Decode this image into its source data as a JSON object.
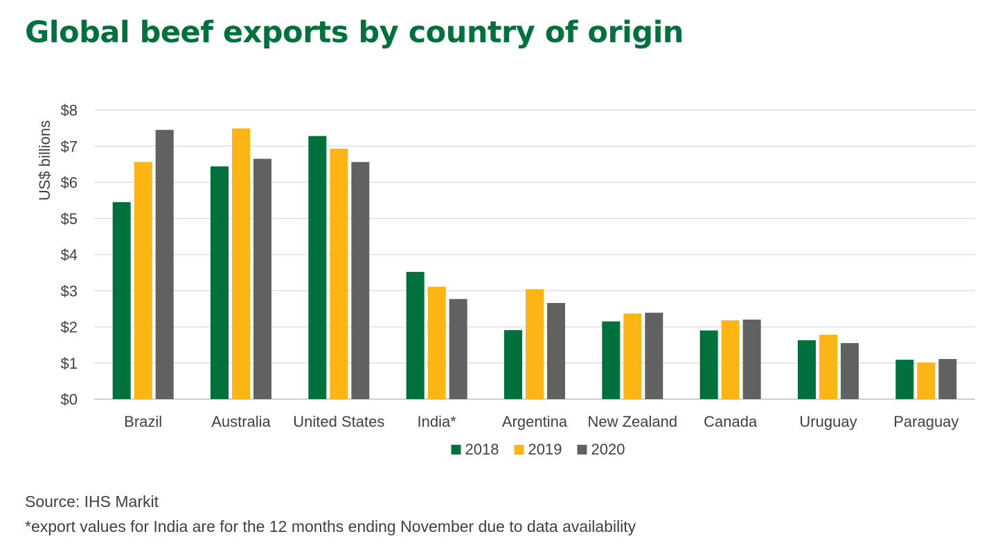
{
  "chart_data": {
    "type": "bar",
    "title": "Global beef exports by country of origin",
    "ylabel": "US$ billions",
    "xlabel": "",
    "ylim": [
      0,
      8
    ],
    "yticks": [
      {
        "value": 0,
        "label": "$0"
      },
      {
        "value": 1,
        "label": "$1"
      },
      {
        "value": 2,
        "label": "$2"
      },
      {
        "value": 3,
        "label": "$3"
      },
      {
        "value": 4,
        "label": "$4"
      },
      {
        "value": 5,
        "label": "$5"
      },
      {
        "value": 6,
        "label": "$6"
      },
      {
        "value": 7,
        "label": "$7"
      },
      {
        "value": 8,
        "label": "$8"
      }
    ],
    "grid": true,
    "legend_position": "bottom",
    "categories": [
      "Brazil",
      "Australia",
      "United States",
      "India*",
      "Argentina",
      "New Zealand",
      "Canada",
      "Uruguay",
      "Paraguay"
    ],
    "series": [
      {
        "name": "2018",
        "color": "#00703C",
        "values": [
          5.45,
          6.44,
          7.28,
          3.52,
          1.91,
          2.15,
          1.9,
          1.63,
          1.09
        ]
      },
      {
        "name": "2019",
        "color": "#FDB515",
        "values": [
          6.56,
          7.49,
          6.93,
          3.11,
          3.04,
          2.37,
          2.18,
          1.78,
          1.01
        ]
      },
      {
        "name": "2020",
        "color": "#616161",
        "values": [
          7.45,
          6.65,
          6.56,
          2.77,
          2.66,
          2.39,
          2.2,
          1.55,
          1.11
        ]
      }
    ]
  },
  "notes": {
    "source": "Source: IHS Markit",
    "india": "*export values for India are for the 12 months ending November due to data availability"
  }
}
